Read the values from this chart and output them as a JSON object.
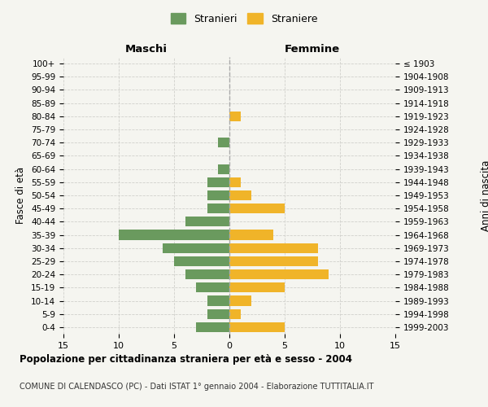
{
  "age_groups": [
    "0-4",
    "5-9",
    "10-14",
    "15-19",
    "20-24",
    "25-29",
    "30-34",
    "35-39",
    "40-44",
    "45-49",
    "50-54",
    "55-59",
    "60-64",
    "65-69",
    "70-74",
    "75-79",
    "80-84",
    "85-89",
    "90-94",
    "95-99",
    "100+"
  ],
  "birth_years": [
    "1999-2003",
    "1994-1998",
    "1989-1993",
    "1984-1988",
    "1979-1983",
    "1974-1978",
    "1969-1973",
    "1964-1968",
    "1959-1963",
    "1954-1958",
    "1949-1953",
    "1944-1948",
    "1939-1943",
    "1934-1938",
    "1929-1933",
    "1924-1928",
    "1919-1923",
    "1914-1918",
    "1909-1913",
    "1904-1908",
    "≤ 1903"
  ],
  "maschi": [
    3,
    2,
    2,
    3,
    4,
    5,
    6,
    10,
    4,
    2,
    2,
    2,
    1,
    0,
    1,
    0,
    0,
    0,
    0,
    0,
    0
  ],
  "femmine": [
    5,
    1,
    2,
    5,
    9,
    8,
    8,
    4,
    0,
    5,
    2,
    1,
    0,
    0,
    0,
    0,
    1,
    0,
    0,
    0,
    0
  ],
  "color_maschi": "#6a9a5e",
  "color_femmine": "#f0b429",
  "background_color": "#f5f5f0",
  "grid_color": "#d0d0cc",
  "title": "Popolazione per cittadinanza straniera per età e sesso - 2004",
  "subtitle": "COMUNE DI CALENDASCO (PC) - Dati ISTAT 1° gennaio 2004 - Elaborazione TUTTITALIA.IT",
  "xlabel_left": "Maschi",
  "xlabel_right": "Femmine",
  "ylabel_left": "Fasce di età",
  "ylabel_right": "Anni di nascita",
  "legend_stranieri": "Stranieri",
  "legend_straniere": "Straniere",
  "xlim": 15,
  "xticks": [
    -15,
    -10,
    -5,
    0,
    5,
    10,
    15
  ],
  "xtick_labels": [
    "15",
    "10",
    "5",
    "0",
    "5",
    "10",
    "15"
  ]
}
